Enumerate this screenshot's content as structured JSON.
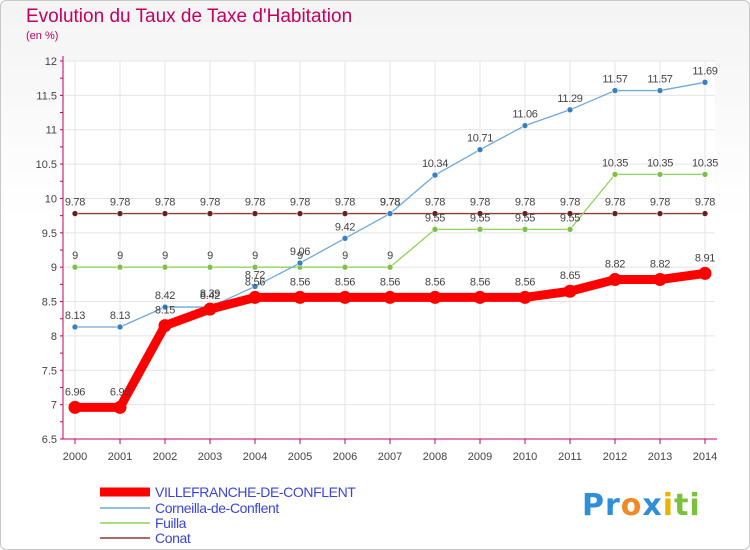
{
  "title": "Evolution du Taux de Taxe d'Habitation",
  "unit_label": "(en %)",
  "logo": {
    "parts": [
      "Pr",
      "o",
      "x",
      "i",
      "ti"
    ],
    "colors": [
      "#2e8fd8",
      "#f08a24",
      "#2e8fd8",
      "#e8b400",
      "#7bc23c"
    ]
  },
  "chart_data": {
    "type": "line",
    "x": [
      "2000",
      "2001",
      "2002",
      "2003",
      "2004",
      "2005",
      "2006",
      "2007",
      "2008",
      "2009",
      "2010",
      "2011",
      "2012",
      "2013",
      "2014"
    ],
    "ylim": [
      6.5,
      12
    ],
    "yticks": [
      "6.5",
      "7",
      "7.5",
      "8",
      "8.5",
      "9",
      "9.5",
      "10",
      "10.5",
      "11",
      "11.5",
      "12"
    ],
    "grid": true,
    "legend_position": "bottom-left",
    "series": [
      {
        "name": "VILLEFRANCHE-DE-CONFLENT",
        "color": "#ff0000",
        "values": [
          6.96,
          6.96,
          8.15,
          8.39,
          8.56,
          8.56,
          8.56,
          8.56,
          8.56,
          8.56,
          8.56,
          8.65,
          8.82,
          8.82,
          8.91
        ],
        "labels": [
          "6.96",
          "6.96",
          "8.15",
          "8.39",
          "8.56",
          "8.56",
          "8.56",
          "8.56",
          "8.56",
          "8.56",
          "8.56",
          "8.65",
          "8.82",
          "8.82",
          "8.91"
        ]
      },
      {
        "name": "Corneilla-de-Conflent",
        "color": "#6fa8dc",
        "values": [
          8.13,
          8.13,
          8.42,
          8.42,
          8.72,
          9.06,
          9.42,
          9.78,
          10.34,
          10.71,
          11.06,
          11.29,
          11.57,
          11.57,
          11.69
        ],
        "labels": [
          "8.13",
          "8.13",
          "8.42",
          "8.42",
          "8.72",
          "9.06",
          "9.42",
          "9.78",
          "10.34",
          "10.71",
          "11.06",
          "11.29",
          "11.57",
          "11.57",
          "11.69"
        ]
      },
      {
        "name": "Fuilla",
        "color": "#8fd35a",
        "values": [
          9,
          9,
          9,
          9,
          9,
          9,
          9,
          9,
          9.55,
          9.55,
          9.55,
          9.55,
          10.35,
          10.35,
          10.35
        ],
        "labels": [
          "9",
          "9",
          "9",
          "9",
          "9",
          "9",
          "9",
          "9",
          "9.55",
          "9.55",
          "9.55",
          "9.55",
          "10.35",
          "10.35",
          "10.35"
        ]
      },
      {
        "name": "Conat",
        "color": "#8b3a3a",
        "values": [
          9.78,
          9.78,
          9.78,
          9.78,
          9.78,
          9.78,
          9.78,
          9.78,
          9.78,
          9.78,
          9.78,
          9.78,
          9.78,
          9.78,
          9.78
        ],
        "labels": [
          "9.78",
          "9.78",
          "9.78",
          "9.78",
          "9.78",
          "9.78",
          "9.78",
          "9.78",
          "9.78",
          "9.78",
          "9.78",
          "9.78",
          "9.78",
          "9.78",
          "9.78"
        ]
      }
    ]
  }
}
